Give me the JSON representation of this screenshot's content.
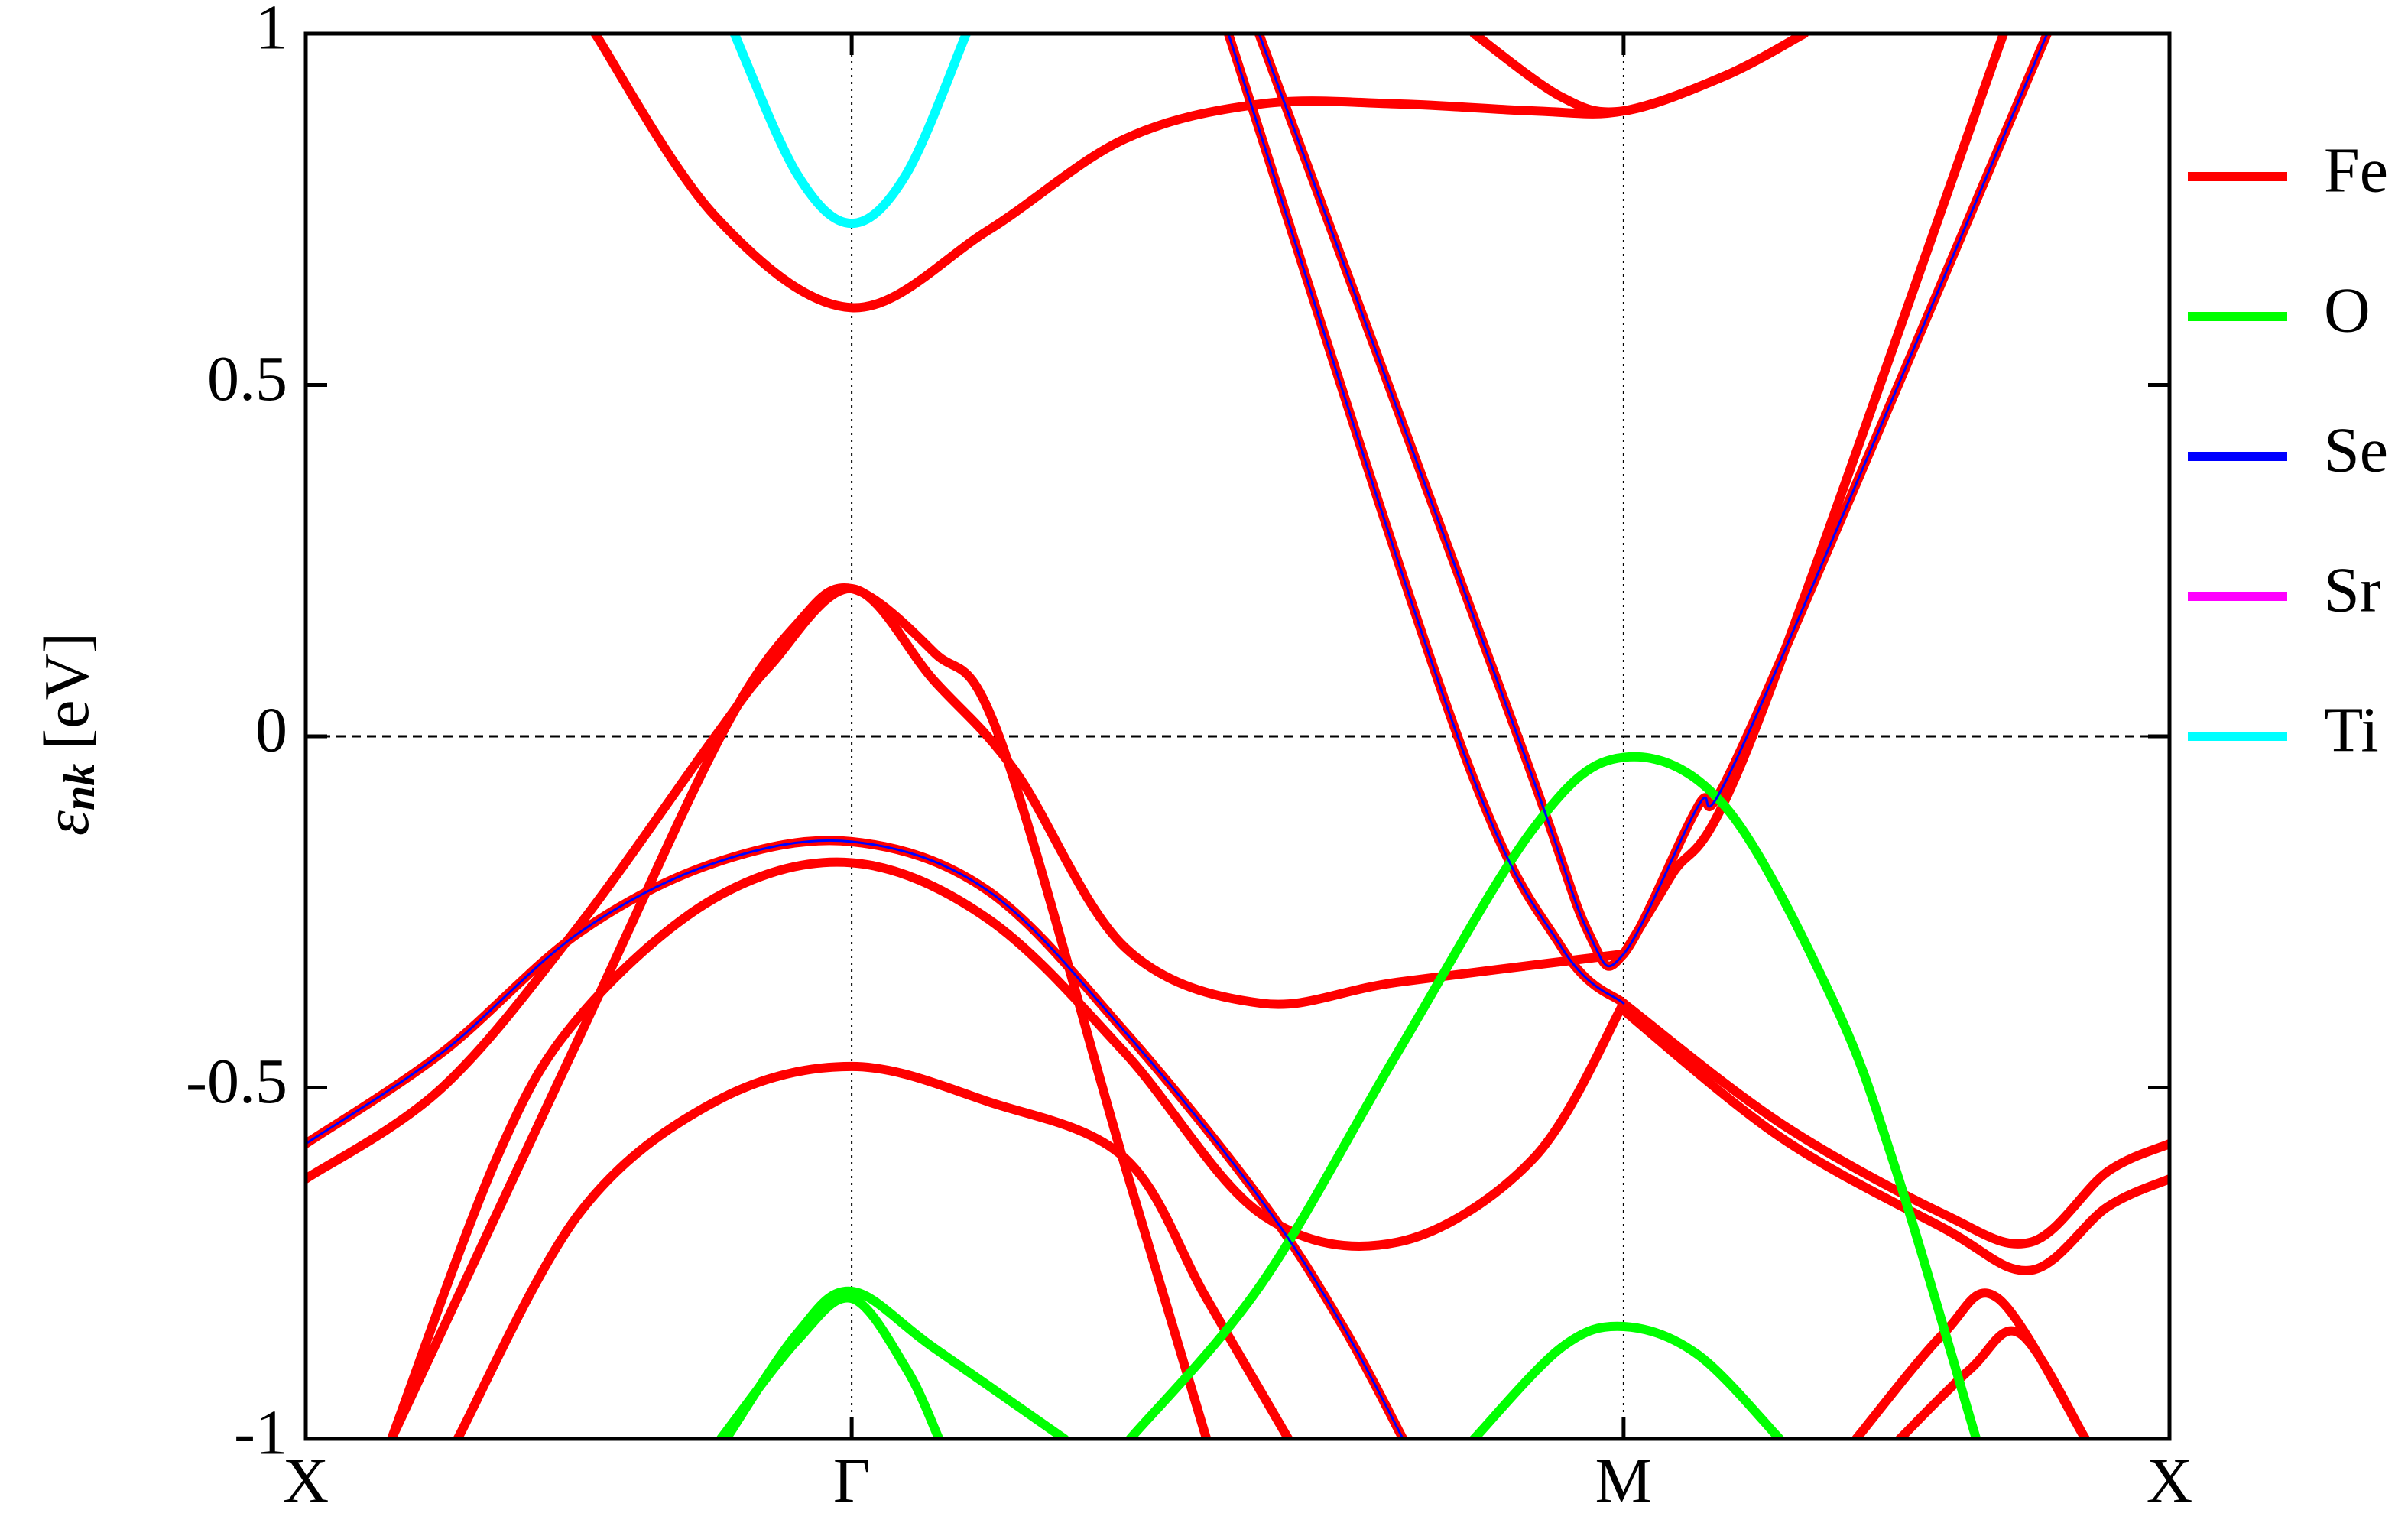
{
  "chart_data": {
    "type": "line",
    "ylabel": {
      "symbol": "ε",
      "subscript": "nk",
      "unit": "[eV]"
    },
    "xlim": [
      0,
      3.414
    ],
    "xticks": [
      {
        "value": 0,
        "label": "X"
      },
      {
        "value": 1,
        "label": "Γ"
      },
      {
        "value": 2.414,
        "label": "M"
      },
      {
        "value": 3.414,
        "label": "X"
      }
    ],
    "ylim": [
      -1,
      1
    ],
    "yticks": [
      -1,
      -0.5,
      0,
      0.5,
      1
    ],
    "grid": "x",
    "zero_line": true,
    "legend": "right-outside",
    "series": [
      {
        "name": "Fe",
        "color": "#ff0000",
        "bands": [
          {
            "x": [
              0.53,
              0.75,
              1,
              1.25,
              1.5,
              1.75,
              2.0,
              2.25,
              2.414,
              2.6,
              2.745
            ],
            "values": [
              1,
              0.74,
              0.61,
              0.72,
              0.85,
              0.9,
              0.9,
              0.89,
              0.89,
              0.94,
              1
            ]
          },
          {
            "x": [
              2.14,
              2.3,
              2.414,
              2.6,
              2.745
            ],
            "values": [
              1,
              0.91,
              0.89,
              0.94,
              1
            ]
          },
          {
            "x": [
              1.69,
              2.11,
              2.3,
              2.414
            ],
            "values": [
              1,
              0,
              -0.3,
              -0.38
            ]
          },
          {
            "x": [
              1.746,
              2.22,
              2.35,
              2.414,
              2.55,
              2.64,
              3.19
            ],
            "values": [
              1,
              0,
              -0.28,
              -0.31,
              -0.1,
              0,
              1
            ]
          },
          {
            "x": [
              2.414,
              2.5,
              2.65,
              3.11
            ],
            "values": [
              -0.31,
              -0.2,
              0,
              1
            ]
          },
          {
            "x": [
              0.157,
              0.5,
              0.76,
              0.9,
              1,
              1.15,
              1.27,
              1.5,
              1.65
            ],
            "values": [
              -1,
              -0.43,
              0,
              0.16,
              0.21,
              0.12,
              0,
              -0.61,
              -1
            ]
          },
          {
            "x": [
              0,
              0.25,
              0.5,
              0.75,
              0.85,
              1,
              1.15,
              1.3,
              1.5,
              1.75,
              2.0,
              2.414
            ],
            "values": [
              -0.63,
              -0.5,
              -0.27,
              0,
              0.1,
              0.21,
              0.08,
              -0.05,
              -0.3,
              -0.38,
              -0.35,
              -0.31
            ]
          },
          {
            "x": [
              0,
              0.25,
              0.5,
              0.75,
              1,
              1.25,
              1.5,
              1.75,
              1.9,
              2.01
            ],
            "values": [
              -0.58,
              -0.45,
              -0.28,
              -0.18,
              -0.15,
              -0.22,
              -0.42,
              -0.66,
              -0.84,
              -1
            ]
          },
          {
            "x": [
              0.157,
              0.35,
              0.5,
              0.75,
              1,
              1.25,
              1.5,
              1.75,
              2.0,
              2.25,
              2.414
            ],
            "values": [
              -1,
              -0.6,
              -0.4,
              -0.23,
              -0.18,
              -0.26,
              -0.45,
              -0.68,
              -0.72,
              -0.6,
              -0.38
            ]
          },
          {
            "x": [
              0.278,
              0.5,
              0.75,
              1,
              1.25,
              1.5,
              1.65,
              1.8
            ],
            "values": [
              -1,
              -0.68,
              -0.52,
              -0.47,
              -0.52,
              -0.6,
              -0.8,
              -1
            ]
          },
          {
            "x": [
              2.414,
              2.7,
              3.0,
              3.16,
              3.3,
              3.414
            ],
            "values": [
              -0.38,
              -0.55,
              -0.68,
              -0.72,
              -0.62,
              -0.58
            ]
          },
          {
            "x": [
              2.414,
              2.7,
              3.0,
              3.16,
              3.3,
              3.414
            ],
            "values": [
              -0.39,
              -0.57,
              -0.7,
              -0.76,
              -0.67,
              -0.63
            ]
          },
          {
            "x": [
              2.84,
              3.0,
              3.1,
              3.26
            ],
            "values": [
              -1,
              -0.85,
              -0.8,
              -1
            ]
          },
          {
            "x": [
              2.92,
              3.05,
              3.14,
              3.26
            ],
            "values": [
              -1,
              -0.9,
              -0.85,
              -1
            ]
          }
        ]
      },
      {
        "name": "O",
        "color": "#00ff00",
        "bands": [
          {
            "x": [
              1.51,
              1.75,
              2.0,
              2.25,
              2.414,
              2.6,
              2.8,
              2.914,
              3.06
            ],
            "values": [
              -1,
              -0.78,
              -0.45,
              -0.13,
              -0.03,
              -0.1,
              -0.38,
              -0.62,
              -1
            ]
          },
          {
            "x": [
              2.14,
              2.3,
              2.414,
              2.55,
              2.7
            ],
            "values": [
              -1,
              -0.87,
              -0.84,
              -0.88,
              -1
            ]
          },
          {
            "x": [
              0.77,
              0.9,
              1,
              1.15,
              1.39
            ],
            "values": [
              -1,
              -0.85,
              -0.79,
              -0.87,
              -1
            ]
          },
          {
            "x": [
              0.76,
              0.9,
              1,
              1.1,
              1.16
            ],
            "values": [
              -1,
              -0.86,
              -0.8,
              -0.9,
              -1
            ]
          }
        ]
      },
      {
        "name": "Se",
        "color": "#0000ff",
        "bands": [
          {
            "x": [
              0,
              0.25,
              0.5,
              0.75,
              1,
              1.25,
              1.5,
              1.75,
              1.9,
              2.01
            ],
            "values": [
              -0.58,
              -0.45,
              -0.28,
              -0.18,
              -0.15,
              -0.22,
              -0.42,
              -0.66,
              -0.84,
              -1
            ]
          },
          {
            "x": [
              1.69,
              2.11,
              2.3,
              2.414
            ],
            "values": [
              1,
              0,
              -0.3,
              -0.38
            ]
          },
          {
            "x": [
              1.746,
              2.22,
              2.35,
              2.414,
              2.55,
              2.64,
              3.19
            ],
            "values": [
              1,
              0,
              -0.28,
              -0.31,
              -0.1,
              0,
              1
            ]
          }
        ]
      },
      {
        "name": "Sr",
        "color": "#ff00ff",
        "bands": []
      },
      {
        "name": "Ti",
        "color": "#00ffff",
        "bands": [
          {
            "x": [
              0.785,
              0.9,
              1,
              1.1,
              1.21
            ],
            "values": [
              1,
              0.8,
              0.73,
              0.8,
              1
            ]
          }
        ]
      }
    ]
  }
}
